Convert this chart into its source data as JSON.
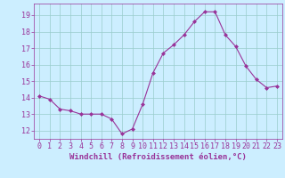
{
  "x": [
    0,
    1,
    2,
    3,
    4,
    5,
    6,
    7,
    8,
    9,
    10,
    11,
    12,
    13,
    14,
    15,
    16,
    17,
    18,
    19,
    20,
    21,
    22,
    23
  ],
  "y": [
    14.1,
    13.9,
    13.3,
    13.2,
    13.0,
    13.0,
    13.0,
    12.7,
    11.8,
    12.1,
    13.6,
    15.5,
    16.7,
    17.2,
    17.8,
    18.6,
    19.2,
    19.2,
    17.8,
    17.1,
    15.9,
    15.1,
    14.6,
    14.7
  ],
  "line_color": "#993399",
  "marker": "D",
  "marker_size": 2.0,
  "bg_color": "#cceeff",
  "grid_color": "#99cccc",
  "tick_color": "#993399",
  "label_color": "#993399",
  "xlabel": "Windchill (Refroidissement éolien,°C)",
  "ylim": [
    11.5,
    19.7
  ],
  "yticks": [
    12,
    13,
    14,
    15,
    16,
    17,
    18,
    19
  ],
  "xticks": [
    0,
    1,
    2,
    3,
    4,
    5,
    6,
    7,
    8,
    9,
    10,
    11,
    12,
    13,
    14,
    15,
    16,
    17,
    18,
    19,
    20,
    21,
    22,
    23
  ],
  "xlabel_fontsize": 6.5,
  "tick_fontsize": 6.0,
  "linewidth": 0.8
}
